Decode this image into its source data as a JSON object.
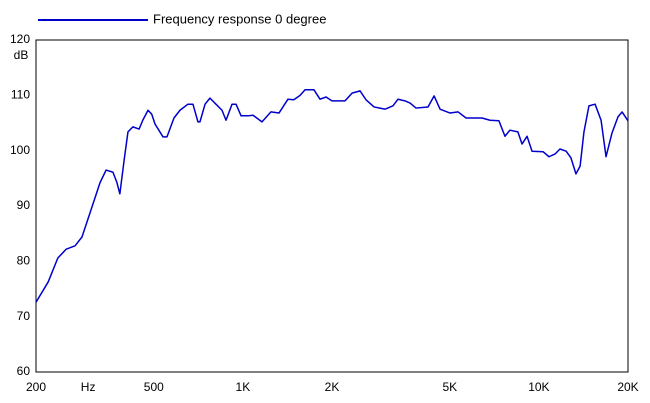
{
  "chart_data": {
    "type": "line",
    "y_label": "dB",
    "xscale": "log",
    "xlim": [
      200,
      20000
    ],
    "ylim": [
      60,
      120
    ],
    "xticks": [
      200,
      {
        "value": 300,
        "label": "Hz"
      },
      500,
      {
        "value": 1000,
        "label": "1K"
      },
      {
        "value": 2000,
        "label": "2K"
      },
      {
        "value": 5000,
        "label": "5K"
      },
      {
        "value": 10000,
        "label": "10K"
      },
      {
        "value": 20000,
        "label": "20K"
      }
    ],
    "xgrid": [
      200,
      300,
      400,
      500,
      600,
      700,
      800,
      900,
      1000,
      2000,
      3000,
      4000,
      5000,
      6000,
      7000,
      8000,
      9000,
      10000,
      20000
    ],
    "yticks": [
      60,
      70,
      80,
      90,
      100,
      110,
      120
    ],
    "grid": true,
    "legend": "top-left",
    "x": [
      200,
      220,
      237,
      253,
      271,
      286,
      309,
      329,
      345,
      364,
      375,
      384,
      397,
      409,
      425,
      446,
      459,
      478,
      492,
      505,
      537,
      554,
      585,
      613,
      652,
      678,
      705,
      716,
      745,
      774,
      811,
      850,
      877,
      919,
      948,
      986,
      1040,
      1082,
      1160,
      1244,
      1324,
      1420,
      1486,
      1560,
      1622,
      1738,
      1822,
      1910,
      2000,
      2213,
      2338,
      2488,
      2606,
      2774,
      3022,
      3214,
      3342,
      3528,
      3670,
      3846,
      4220,
      4426,
      4636,
      5012,
      5334,
      5676,
      6040,
      6426,
      6840,
      7328,
      7680,
      7980,
      8492,
      8770,
      9120,
      9480,
      10340,
      10820,
      11340,
      11780,
      12360,
      12830,
      13340,
      13780,
      14200,
      14760,
      15480,
      16220,
      16860,
      17660,
      18500,
      19100,
      20000
    ],
    "series": [
      {
        "name": "Frequency response 0 degree",
        "color": "#0000cc",
        "values": [
          72.6,
          76.3,
          80.6,
          82.2,
          82.8,
          84.4,
          89.8,
          94.2,
          96.5,
          96.1,
          94.3,
          92.2,
          98.3,
          103.4,
          104.3,
          103.9,
          105.5,
          107.3,
          106.6,
          104.8,
          102.5,
          102.5,
          105.9,
          107.3,
          108.4,
          108.4,
          105.2,
          105.2,
          108.4,
          109.5,
          108.4,
          107.3,
          105.5,
          108.4,
          108.4,
          106.3,
          106.3,
          106.4,
          105.2,
          107,
          106.8,
          109.3,
          109.2,
          110,
          111,
          111,
          109.3,
          109.7,
          109,
          109,
          110.4,
          110.8,
          109.2,
          107.9,
          107.5,
          108.1,
          109.3,
          109,
          108.6,
          107.7,
          107.9,
          109.9,
          107.5,
          106.8,
          107,
          105.9,
          105.9,
          105.9,
          105.5,
          105.4,
          102.6,
          103.7,
          103.4,
          101.2,
          102.6,
          99.9,
          99.8,
          98.9,
          99.4,
          100.3,
          99.9,
          98.7,
          95.8,
          97.2,
          103.4,
          108.1,
          108.4,
          105.5,
          98.9,
          103.2,
          106.1,
          107,
          105.4
        ]
      }
    ]
  }
}
